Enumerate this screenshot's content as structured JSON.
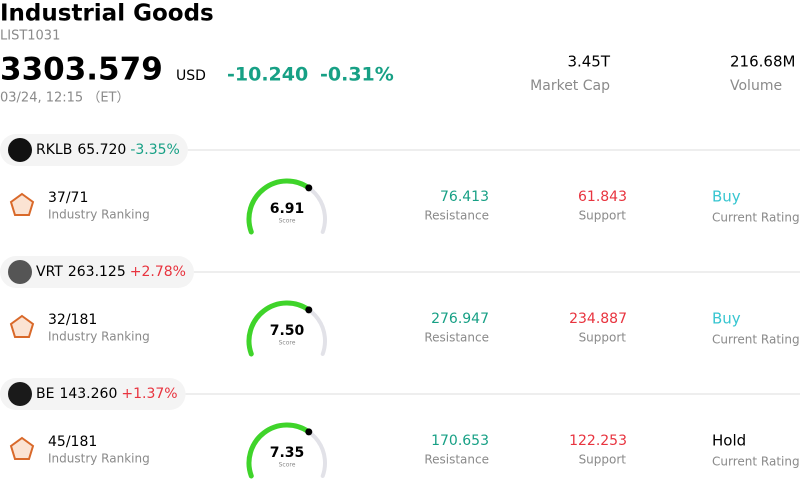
{
  "header": {
    "title": "Industrial Goods",
    "code": "LIST1031",
    "price": "3303.579",
    "currency": "USD",
    "change": "-10.240",
    "change_pct": "-0.31%",
    "time": "03/24, 12:15 （ET）"
  },
  "stats": [
    {
      "value": "3.45T",
      "label": "Market Cap"
    },
    {
      "value": "216.68M",
      "label": "Volume"
    }
  ],
  "stocks": [
    {
      "symbol": "RKLB",
      "price": "65.720",
      "change": "-3.35%",
      "ranking": "37/71",
      "ranking_label": "Industry Ranking",
      "score": "6.91",
      "score_label": "Score",
      "resistance": "76.413",
      "resistance_label": "Resistance",
      "support": "61.843",
      "support_label": "Support",
      "rating": "Buy",
      "rating_label": "Current Rating"
    },
    {
      "symbol": "VRT",
      "price": "263.125",
      "change": "+2.78%",
      "ranking": "32/181",
      "ranking_label": "Industry Ranking",
      "score": "7.50",
      "score_label": "Score",
      "resistance": "276.947",
      "resistance_label": "Resistance",
      "support": "234.887",
      "support_label": "Support",
      "rating": "Buy",
      "rating_label": "Current Rating"
    },
    {
      "symbol": "BE",
      "price": "143.260",
      "change": "+1.37%",
      "ranking": "45/181",
      "ranking_label": "Industry Ranking",
      "score": "7.35",
      "score_label": "Score",
      "resistance": "170.653",
      "resistance_label": "Resistance",
      "support": "122.253",
      "support_label": "Support",
      "rating": "Hold",
      "rating_label": "Current Rating"
    }
  ]
}
